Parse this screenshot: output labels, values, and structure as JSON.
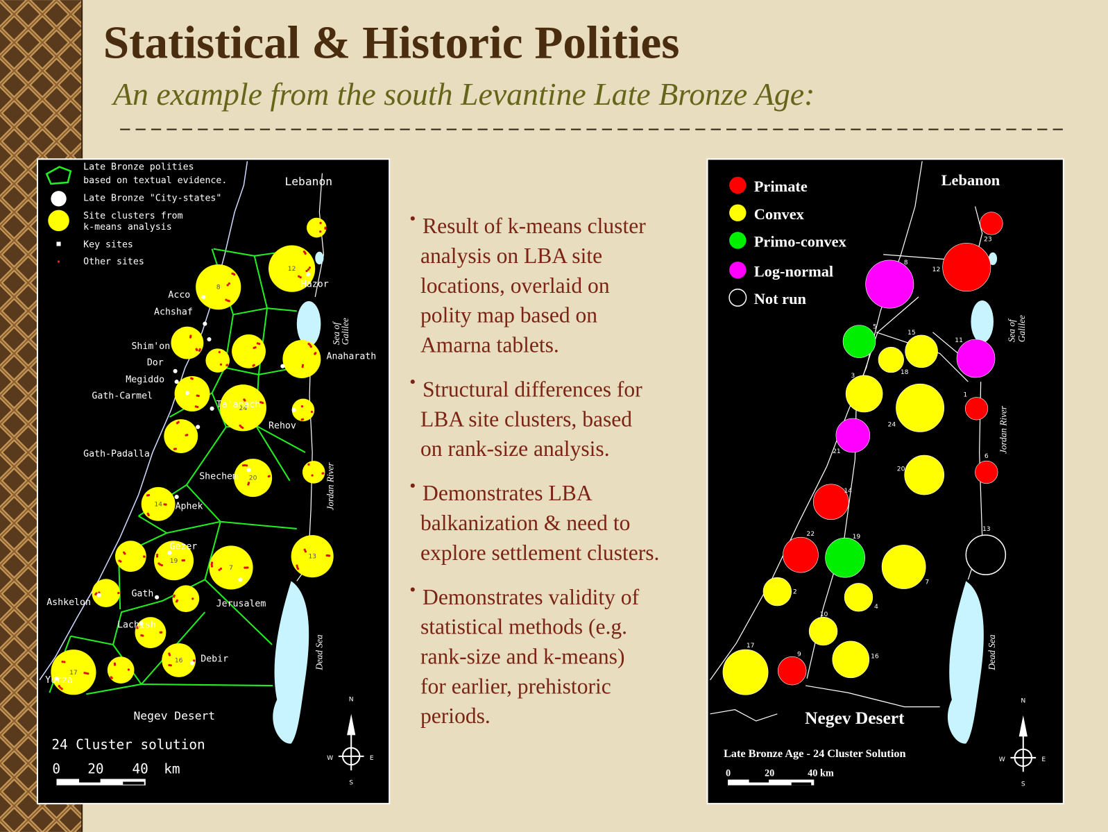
{
  "title": "Statistical & Historic Polities",
  "subtitle": "An example from the south Levantine Late Bronze Age:",
  "bullets": [
    [
      "Result of k-means cluster",
      "analysis on LBA site",
      "locations, overlaid on",
      "polity map based on",
      "Amarna tablets."
    ],
    [
      "Structural differences for",
      "LBA site clusters, based",
      "on rank-size analysis."
    ],
    [
      "Demonstrates LBA",
      "balkanization & need to",
      "explore settlement clusters."
    ],
    [
      "Demonstrates validity of",
      "statistical methods (e.g.",
      "rank-size and k-means)",
      "for earlier, prehistoric",
      "periods."
    ]
  ],
  "left_map": {
    "legend": [
      [
        "Late Bronze polities",
        "based on textual evidence."
      ],
      [
        "Late Bronze \"City-states\""
      ],
      [
        "Site clusters from",
        "k-means analysis"
      ],
      [
        "Key sites"
      ],
      [
        "Other sites"
      ]
    ],
    "regions": {
      "lebanon": "Lebanon",
      "negev": "Negev Desert",
      "galilee": [
        "Sea of",
        "Galilee"
      ],
      "jordan": "Jordan River",
      "dead_sea": "Dead Sea"
    },
    "sites": [
      "Acco",
      "Achshaf",
      "Shim'on",
      "Dor",
      "Megiddo",
      "Gath-Carmel",
      "Ta'anach",
      "Rehov",
      "Gath-Padalla",
      "Shechem",
      "Aphek",
      "Gezer",
      "Gath",
      "Jerusalem",
      "Ashkelon",
      "Lachish",
      "Debir",
      "Yurza",
      "Hazor",
      "Anaharath"
    ],
    "clusters": [
      null,
      "12",
      "8",
      null,
      null,
      null,
      null,
      null,
      "24",
      null,
      null,
      null,
      "20",
      "14",
      "13",
      null,
      "19",
      "7",
      null,
      null,
      null,
      "16",
      null,
      "17"
    ],
    "caption": "24 Cluster solution",
    "scale": [
      "0",
      "20",
      "40",
      "km"
    ],
    "compass": [
      "N",
      "E",
      "S",
      "W"
    ]
  },
  "right_map": {
    "legend": [
      {
        "label": "Primate",
        "color": "#ff0000"
      },
      {
        "label": "Convex",
        "color": "#ffff00"
      },
      {
        "label": "Primo-convex",
        "color": "#00ee00"
      },
      {
        "label": "Log-normal",
        "color": "#ff00ff"
      },
      {
        "label": "Not run",
        "color": "#000000"
      }
    ],
    "regions": {
      "lebanon": "Lebanon",
      "negev": "Negev Desert",
      "galilee": [
        "Sea of",
        "Galilee"
      ],
      "jordan": "Jordan River",
      "dead_sea": "Dead Sea"
    },
    "clusters": [
      {
        "label": "23",
        "type": 0
      },
      {
        "label": "12",
        "type": 0
      },
      {
        "label": "8",
        "type": 3
      },
      {
        "label": "5",
        "type": 2
      },
      {
        "label": "15",
        "type": 1
      },
      {
        "label": "11",
        "type": 3
      },
      {
        "label": "18",
        "type": 1
      },
      {
        "label": "3",
        "type": 1
      },
      {
        "label": "24",
        "type": 1
      },
      {
        "label": "1",
        "type": 0
      },
      {
        "label": "21",
        "type": 3
      },
      {
        "label": "6",
        "type": 0
      },
      {
        "label": "20",
        "type": 1
      },
      {
        "label": "14",
        "type": 0
      },
      {
        "label": "13",
        "type": 4
      },
      {
        "label": "22",
        "type": 0
      },
      {
        "label": "19",
        "type": 2
      },
      {
        "label": "7",
        "type": 1
      },
      {
        "label": "2",
        "type": 1
      },
      {
        "label": "4",
        "type": 1
      },
      {
        "label": "10",
        "type": 1
      },
      {
        "label": "16",
        "type": 1
      },
      {
        "label": "9",
        "type": 0
      },
      {
        "label": "17",
        "type": 1
      }
    ],
    "caption": "Late Bronze Age - 24 Cluster Solution",
    "scale": [
      "0",
      "20",
      "40 km"
    ],
    "compass": [
      "N",
      "E",
      "S",
      "W"
    ]
  }
}
